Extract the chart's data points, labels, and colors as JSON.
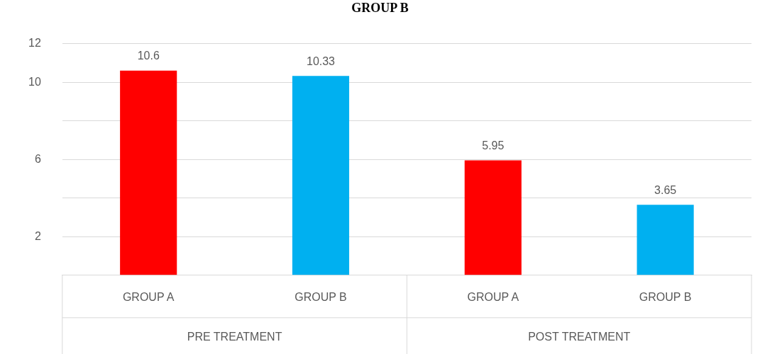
{
  "chart_data": {
    "type": "bar",
    "title": "GROUP B",
    "categories": [
      "GROUP A",
      "GROUP B",
      "GROUP A",
      "GROUP B"
    ],
    "values": [
      10.6,
      10.33,
      5.95,
      3.65
    ],
    "colors": [
      "#ff0000",
      "#00b0f0",
      "#ff0000",
      "#00b0f0"
    ],
    "ylim": [
      0,
      12
    ],
    "yticks": [
      {
        "value": 0,
        "label": null
      },
      2,
      {
        "value": 4,
        "label": null
      },
      6,
      {
        "value": 8,
        "label": null
      },
      10,
      12
    ],
    "grid": "y",
    "legend": false,
    "data_labels": true,
    "annotations": [
      "PRE TREATMENT",
      "POST TREATMENT"
    ]
  }
}
